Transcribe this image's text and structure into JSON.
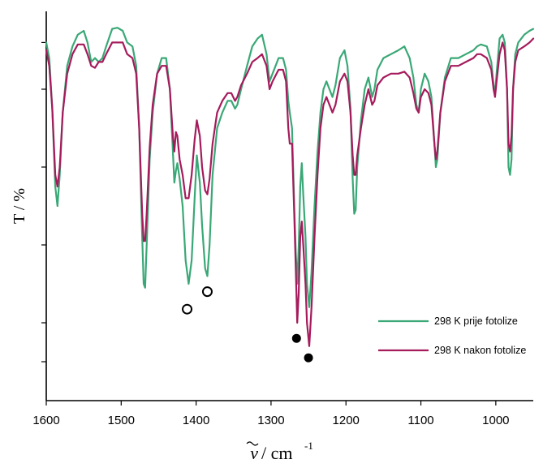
{
  "chart_data": {
    "type": "line",
    "ylabel": "T / %",
    "xlabel_symbol": "ν",
    "xlabel_unit": "/ cm",
    "xlabel_exponent": "-1",
    "xlim": [
      1600,
      950
    ],
    "ylim": [
      0,
      100
    ],
    "x_ticks": [
      1600,
      1500,
      1400,
      1300,
      1200,
      1100,
      1000
    ],
    "y_ticks": [
      10,
      20,
      40,
      60,
      80,
      92
    ],
    "legend_position": "bottom-right",
    "series": [
      {
        "name": "298 K prije fotolize",
        "color": "#3aa876",
        "points": [
          [
            1600,
            92
          ],
          [
            1596,
            88
          ],
          [
            1592,
            75
          ],
          [
            1588,
            55
          ],
          [
            1585,
            50
          ],
          [
            1582,
            58
          ],
          [
            1578,
            74
          ],
          [
            1572,
            86
          ],
          [
            1565,
            91
          ],
          [
            1558,
            94
          ],
          [
            1550,
            95
          ],
          [
            1545,
            92
          ],
          [
            1540,
            87
          ],
          [
            1535,
            88
          ],
          [
            1530,
            87
          ],
          [
            1525,
            88
          ],
          [
            1520,
            91
          ],
          [
            1512,
            95.5
          ],
          [
            1505,
            95.8
          ],
          [
            1498,
            95
          ],
          [
            1492,
            92
          ],
          [
            1485,
            91
          ],
          [
            1480,
            86
          ],
          [
            1476,
            70
          ],
          [
            1472,
            42
          ],
          [
            1470,
            30
          ],
          [
            1468,
            29
          ],
          [
            1466,
            40
          ],
          [
            1462,
            62
          ],
          [
            1458,
            74
          ],
          [
            1452,
            84
          ],
          [
            1446,
            88
          ],
          [
            1440,
            88
          ],
          [
            1435,
            80
          ],
          [
            1431,
            64
          ],
          [
            1429,
            56
          ],
          [
            1427,
            59
          ],
          [
            1425,
            61
          ],
          [
            1422,
            57
          ],
          [
            1418,
            50
          ],
          [
            1414,
            36
          ],
          [
            1410,
            30
          ],
          [
            1406,
            36
          ],
          [
            1402,
            52
          ],
          [
            1399,
            63
          ],
          [
            1395,
            56
          ],
          [
            1392,
            45
          ],
          [
            1388,
            34
          ],
          [
            1385,
            32
          ],
          [
            1382,
            40
          ],
          [
            1378,
            58
          ],
          [
            1372,
            70
          ],
          [
            1365,
            74
          ],
          [
            1358,
            77
          ],
          [
            1353,
            77
          ],
          [
            1348,
            75
          ],
          [
            1345,
            76
          ],
          [
            1340,
            80
          ],
          [
            1332,
            86
          ],
          [
            1325,
            91
          ],
          [
            1318,
            93
          ],
          [
            1312,
            94
          ],
          [
            1306,
            89
          ],
          [
            1302,
            82
          ],
          [
            1298,
            84
          ],
          [
            1290,
            88
          ],
          [
            1284,
            88
          ],
          [
            1280,
            85
          ],
          [
            1277,
            77
          ],
          [
            1275,
            74
          ],
          [
            1272,
            70
          ],
          [
            1269,
            50
          ],
          [
            1267,
            38
          ],
          [
            1265,
            30
          ],
          [
            1263,
            40
          ],
          [
            1261,
            55
          ],
          [
            1259,
            61
          ],
          [
            1257,
            53
          ],
          [
            1254,
            42
          ],
          [
            1252,
            30
          ],
          [
            1249,
            24
          ],
          [
            1246,
            33
          ],
          [
            1242,
            50
          ],
          [
            1238,
            64
          ],
          [
            1234,
            74
          ],
          [
            1230,
            80
          ],
          [
            1226,
            82
          ],
          [
            1222,
            80
          ],
          [
            1218,
            78
          ],
          [
            1214,
            81
          ],
          [
            1208,
            88
          ],
          [
            1202,
            90
          ],
          [
            1198,
            86
          ],
          [
            1194,
            75
          ],
          [
            1191,
            57
          ],
          [
            1189,
            48
          ],
          [
            1187,
            49
          ],
          [
            1185,
            60
          ],
          [
            1180,
            72
          ],
          [
            1175,
            80
          ],
          [
            1170,
            83
          ],
          [
            1165,
            78
          ],
          [
            1162,
            80
          ],
          [
            1158,
            85
          ],
          [
            1150,
            88
          ],
          [
            1140,
            89
          ],
          [
            1130,
            90
          ],
          [
            1122,
            91
          ],
          [
            1115,
            88
          ],
          [
            1110,
            83
          ],
          [
            1106,
            76
          ],
          [
            1103,
            74
          ],
          [
            1100,
            80
          ],
          [
            1095,
            84
          ],
          [
            1090,
            82
          ],
          [
            1086,
            78
          ],
          [
            1082,
            66
          ],
          [
            1080,
            60
          ],
          [
            1078,
            62
          ],
          [
            1074,
            74
          ],
          [
            1068,
            83
          ],
          [
            1060,
            88
          ],
          [
            1050,
            88
          ],
          [
            1040,
            89
          ],
          [
            1030,
            90
          ],
          [
            1025,
            91
          ],
          [
            1020,
            91.5
          ],
          [
            1012,
            91
          ],
          [
            1006,
            87
          ],
          [
            1003,
            81
          ],
          [
            1001,
            79
          ],
          [
            999,
            84
          ],
          [
            995,
            93
          ],
          [
            991,
            94
          ],
          [
            988,
            92
          ],
          [
            985,
            80
          ],
          [
            983,
            60
          ],
          [
            981,
            58
          ],
          [
            979,
            62
          ],
          [
            977,
            80
          ],
          [
            974,
            89
          ],
          [
            970,
            92
          ],
          [
            962,
            94
          ],
          [
            955,
            95
          ],
          [
            950,
            95.5
          ]
        ]
      },
      {
        "name": "298 K nakon fotolize",
        "color": "#a51b5c",
        "points": [
          [
            1600,
            90
          ],
          [
            1596,
            86
          ],
          [
            1592,
            75
          ],
          [
            1588,
            58
          ],
          [
            1585,
            55
          ],
          [
            1582,
            60
          ],
          [
            1578,
            74
          ],
          [
            1572,
            84
          ],
          [
            1565,
            89
          ],
          [
            1558,
            91.5
          ],
          [
            1550,
            91.5
          ],
          [
            1545,
            89
          ],
          [
            1540,
            86
          ],
          [
            1535,
            85.5
          ],
          [
            1530,
            87
          ],
          [
            1525,
            87
          ],
          [
            1520,
            89
          ],
          [
            1512,
            92
          ],
          [
            1505,
            92
          ],
          [
            1498,
            92
          ],
          [
            1492,
            89
          ],
          [
            1485,
            88
          ],
          [
            1480,
            84
          ],
          [
            1476,
            70
          ],
          [
            1472,
            48
          ],
          [
            1470,
            41
          ],
          [
            1468,
            41
          ],
          [
            1466,
            48
          ],
          [
            1462,
            65
          ],
          [
            1458,
            76
          ],
          [
            1452,
            84
          ],
          [
            1446,
            86
          ],
          [
            1440,
            86
          ],
          [
            1435,
            80
          ],
          [
            1431,
            68
          ],
          [
            1429,
            64
          ],
          [
            1427,
            69
          ],
          [
            1425,
            68
          ],
          [
            1422,
            62
          ],
          [
            1418,
            58
          ],
          [
            1414,
            52
          ],
          [
            1410,
            52
          ],
          [
            1406,
            58
          ],
          [
            1402,
            67
          ],
          [
            1399,
            72
          ],
          [
            1395,
            68
          ],
          [
            1392,
            60
          ],
          [
            1388,
            54
          ],
          [
            1385,
            53
          ],
          [
            1382,
            57
          ],
          [
            1378,
            66
          ],
          [
            1372,
            74
          ],
          [
            1365,
            77
          ],
          [
            1358,
            79
          ],
          [
            1353,
            79
          ],
          [
            1348,
            77
          ],
          [
            1345,
            78
          ],
          [
            1340,
            81
          ],
          [
            1332,
            84
          ],
          [
            1325,
            87
          ],
          [
            1318,
            88
          ],
          [
            1312,
            89
          ],
          [
            1306,
            86
          ],
          [
            1302,
            80
          ],
          [
            1298,
            82
          ],
          [
            1290,
            85
          ],
          [
            1284,
            85
          ],
          [
            1280,
            82
          ],
          [
            1277,
            70
          ],
          [
            1275,
            66
          ],
          [
            1272,
            66
          ],
          [
            1269,
            48
          ],
          [
            1267,
            34
          ],
          [
            1265,
            20
          ],
          [
            1263,
            28
          ],
          [
            1261,
            42
          ],
          [
            1259,
            46
          ],
          [
            1257,
            40
          ],
          [
            1254,
            30
          ],
          [
            1252,
            20
          ],
          [
            1249,
            14
          ],
          [
            1246,
            24
          ],
          [
            1242,
            42
          ],
          [
            1238,
            58
          ],
          [
            1234,
            70
          ],
          [
            1230,
            76
          ],
          [
            1226,
            78
          ],
          [
            1222,
            76
          ],
          [
            1218,
            74
          ],
          [
            1214,
            76
          ],
          [
            1208,
            82
          ],
          [
            1202,
            84
          ],
          [
            1198,
            82
          ],
          [
            1194,
            74
          ],
          [
            1191,
            63
          ],
          [
            1189,
            58
          ],
          [
            1187,
            58
          ],
          [
            1185,
            63
          ],
          [
            1180,
            70
          ],
          [
            1175,
            76
          ],
          [
            1170,
            80
          ],
          [
            1165,
            76
          ],
          [
            1162,
            77
          ],
          [
            1158,
            81
          ],
          [
            1150,
            83
          ],
          [
            1140,
            84
          ],
          [
            1130,
            84
          ],
          [
            1122,
            84.5
          ],
          [
            1115,
            83
          ],
          [
            1110,
            79
          ],
          [
            1106,
            75
          ],
          [
            1103,
            74
          ],
          [
            1100,
            78
          ],
          [
            1095,
            80
          ],
          [
            1090,
            79
          ],
          [
            1086,
            76
          ],
          [
            1082,
            66
          ],
          [
            1080,
            62
          ],
          [
            1078,
            64
          ],
          [
            1074,
            74
          ],
          [
            1068,
            82
          ],
          [
            1060,
            86
          ],
          [
            1050,
            86
          ],
          [
            1040,
            87
          ],
          [
            1030,
            88
          ],
          [
            1025,
            89
          ],
          [
            1020,
            89
          ],
          [
            1012,
            88
          ],
          [
            1006,
            85
          ],
          [
            1003,
            80
          ],
          [
            1001,
            78
          ],
          [
            999,
            82
          ],
          [
            995,
            89
          ],
          [
            991,
            92
          ],
          [
            988,
            90
          ],
          [
            985,
            80
          ],
          [
            983,
            66
          ],
          [
            981,
            64
          ],
          [
            979,
            68
          ],
          [
            977,
            80
          ],
          [
            974,
            87
          ],
          [
            970,
            90
          ],
          [
            962,
            91
          ],
          [
            955,
            92
          ],
          [
            950,
            93
          ]
        ]
      }
    ],
    "markers": [
      {
        "type": "open-circle",
        "x": 1412,
        "y": 23.5
      },
      {
        "type": "open-circle",
        "x": 1385,
        "y": 28
      },
      {
        "type": "filled-circle",
        "x": 1266,
        "y": 16
      },
      {
        "type": "filled-circle",
        "x": 1250,
        "y": 11
      }
    ]
  }
}
